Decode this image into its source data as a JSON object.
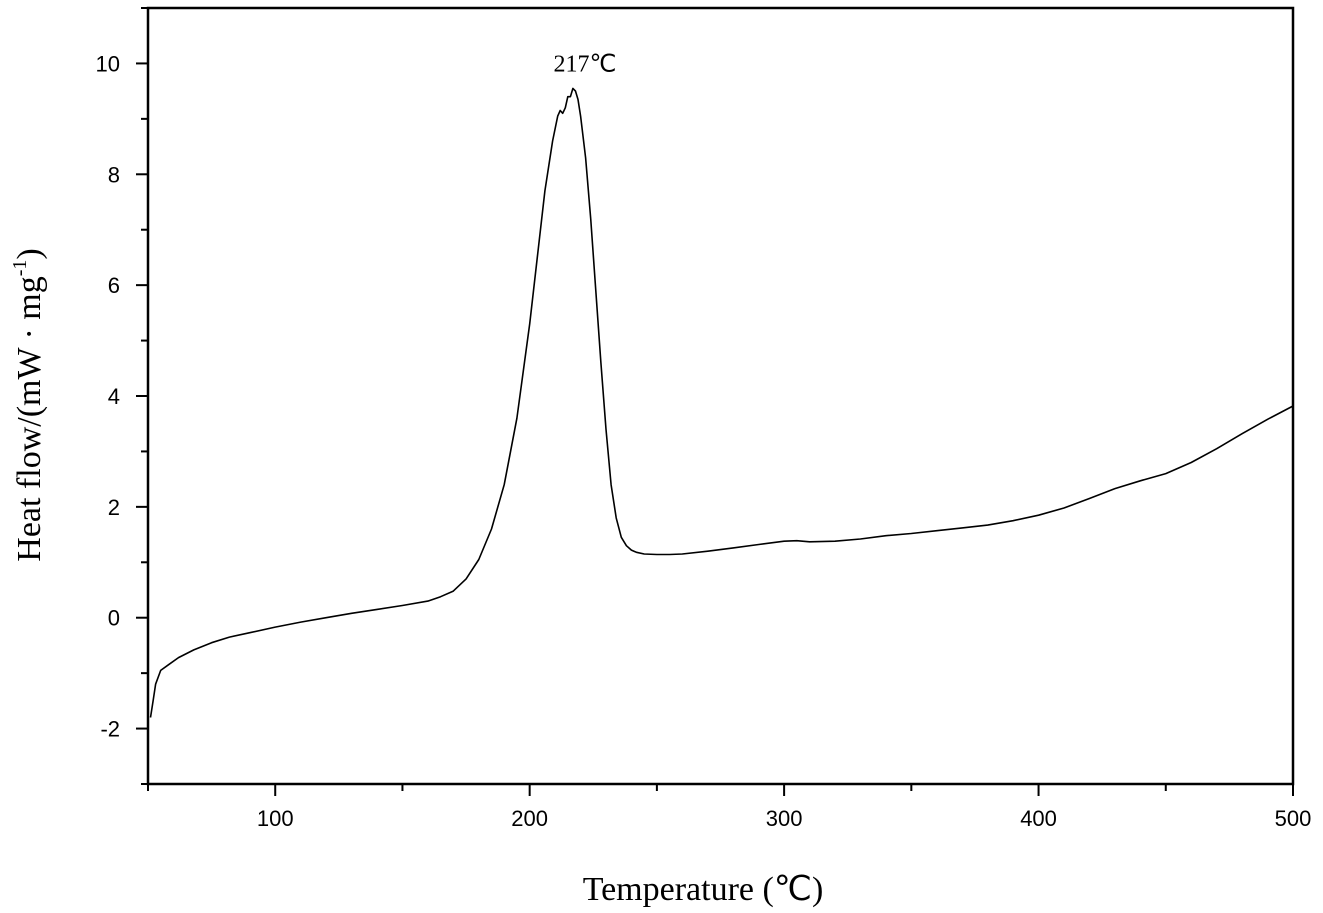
{
  "chart_data": {
    "type": "line",
    "xlabel": "Temperature (℃)",
    "ylabel": "Heat flow/(mW · mg",
    "ylabel_sup": "-1",
    "ylabel_close": ")",
    "xlim": [
      50,
      500
    ],
    "ylim": [
      -3,
      11
    ],
    "x_ticks": [
      100,
      200,
      300,
      400,
      500
    ],
    "x_tick_labels": [
      "100",
      "200",
      "300",
      "400",
      "500"
    ],
    "y_ticks": [
      -2,
      0,
      2,
      4,
      6,
      8,
      10
    ],
    "y_tick_labels": [
      "-2",
      "0",
      "2",
      "4",
      "6",
      "8",
      "10"
    ],
    "grid": false,
    "annotation": {
      "text": "217℃",
      "x": 217,
      "y": 9.6
    },
    "series": [
      {
        "x": [
          51,
          52,
          53,
          55,
          58,
          62,
          68,
          75,
          82,
          90,
          100,
          110,
          120,
          130,
          140,
          150,
          160,
          165,
          170,
          175,
          180,
          185,
          190,
          195,
          200,
          203,
          206,
          209,
          211,
          212,
          213,
          214,
          215,
          216,
          217,
          218,
          219,
          220,
          222,
          224,
          226,
          228,
          230,
          232,
          234,
          236,
          238,
          240,
          242,
          245,
          250,
          255,
          260,
          270,
          280,
          290,
          300,
          305,
          310,
          320,
          330,
          340,
          350,
          360,
          370,
          380,
          390,
          400,
          410,
          420,
          430,
          440,
          450,
          460,
          470,
          480,
          490,
          500
        ],
        "y": [
          -1.8,
          -1.5,
          -1.2,
          -0.95,
          -0.85,
          -0.72,
          -0.58,
          -0.45,
          -0.35,
          -0.27,
          -0.17,
          -0.08,
          0.0,
          0.08,
          0.15,
          0.22,
          0.3,
          0.38,
          0.48,
          0.7,
          1.05,
          1.6,
          2.4,
          3.6,
          5.3,
          6.5,
          7.7,
          8.6,
          9.05,
          9.15,
          9.1,
          9.2,
          9.4,
          9.4,
          9.55,
          9.5,
          9.35,
          9.05,
          8.3,
          7.2,
          5.9,
          4.6,
          3.4,
          2.4,
          1.8,
          1.45,
          1.3,
          1.22,
          1.18,
          1.15,
          1.14,
          1.14,
          1.15,
          1.2,
          1.26,
          1.32,
          1.38,
          1.39,
          1.37,
          1.38,
          1.42,
          1.48,
          1.52,
          1.57,
          1.62,
          1.67,
          1.75,
          1.85,
          1.98,
          2.15,
          2.33,
          2.47,
          2.6,
          2.8,
          3.05,
          3.32,
          3.58,
          3.82
        ]
      }
    ]
  }
}
